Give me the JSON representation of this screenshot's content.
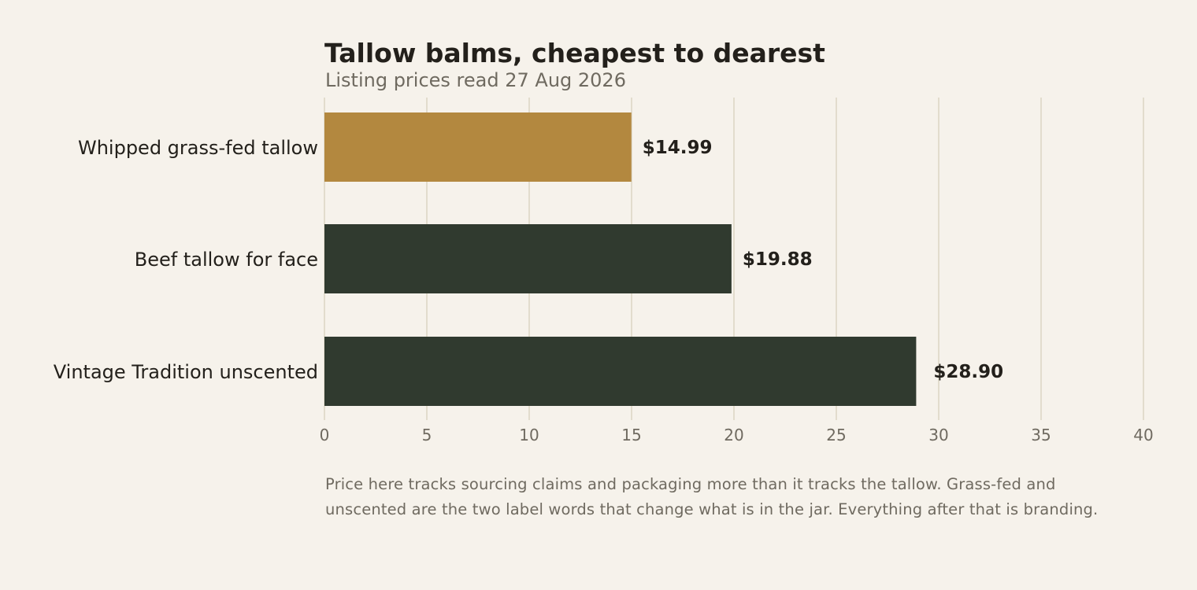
{
  "title": "Tallow balms, cheapest to dearest",
  "subtitle": "Listing prices read 27 Aug 2026",
  "note": "Price here tracks sourcing claims and packaging more than it tracks the tallow. Grass-fed and unscented are the two label words that change what is in the jar. Everything after that is branding.",
  "colors": {
    "background": "#f6f2eb",
    "highlight": "#b3883f",
    "bar": "#303a2f",
    "grid": "#e2dccd",
    "text": "#23201b",
    "muted": "#6f6a60"
  },
  "chart_data": {
    "type": "bar",
    "orientation": "horizontal",
    "title": "Tallow balms, cheapest to dearest",
    "subtitle": "Listing prices read 27 Aug 2026",
    "categories": [
      "Whipped grass-fed tallow",
      "Beef tallow for face",
      "Vintage Tradition unscented"
    ],
    "values": [
      14.99,
      19.88,
      28.9
    ],
    "value_labels": [
      "$14.99",
      "$19.88",
      "$28.90"
    ],
    "highlighted_category": "Whipped grass-fed tallow",
    "xlim": [
      0,
      40
    ],
    "xticks": [
      0,
      5,
      10,
      15,
      20,
      25,
      30,
      35,
      40
    ],
    "xlabel": "",
    "ylabel": "",
    "grid": "vertical",
    "legend": "none"
  }
}
